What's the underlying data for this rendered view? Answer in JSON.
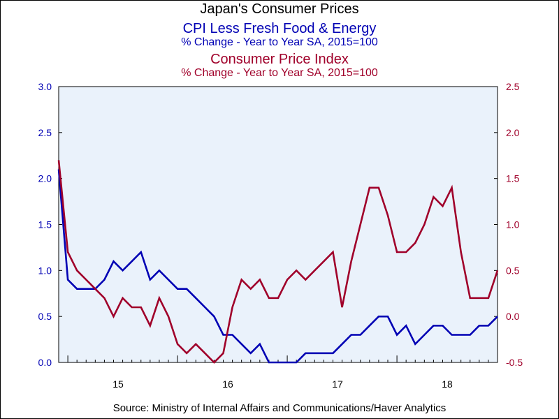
{
  "title": "Japan's Consumer Prices",
  "series1_title": "CPI Less Fresh Food & Energy",
  "series1_subtitle": "% Change - Year to Year     SA, 2015=100",
  "series2_title": "Consumer Price Index",
  "series2_subtitle": "% Change - Year to Year     SA, 2015=100",
  "source": "Source:  Ministry of Internal Affairs and Communications/Haver Analytics",
  "colors": {
    "series1": "#0000b4",
    "series2": "#a0002a",
    "plot_bg": "#eaf2fb",
    "left_axis": "#0000b4",
    "right_axis": "#a0002a"
  },
  "chart_data": {
    "type": "line",
    "x_unit": "month",
    "x_start": "2014-12",
    "x_tick_labels": [
      "15",
      "16",
      "17",
      "18"
    ],
    "left_axis": {
      "ylim": [
        0.0,
        3.0
      ],
      "ticks": [
        "0.0",
        "0.5",
        "1.0",
        "1.5",
        "2.0",
        "2.5",
        "3.0"
      ]
    },
    "right_axis": {
      "ylim": [
        -0.5,
        2.5
      ],
      "ticks": [
        "-0.5",
        "0.0",
        "0.5",
        "1.0",
        "1.5",
        "2.0",
        "2.5"
      ]
    },
    "grid": false,
    "series": [
      {
        "name": "CPI Less Fresh Food & Energy",
        "axis": "left",
        "values": [
          2.1,
          0.9,
          0.8,
          0.8,
          0.8,
          0.9,
          1.1,
          1.0,
          1.1,
          1.2,
          0.9,
          1.0,
          0.9,
          0.8,
          0.8,
          0.7,
          0.6,
          0.5,
          0.3,
          0.3,
          0.2,
          0.1,
          0.2,
          0.0,
          0.0,
          0.0,
          0.0,
          0.1,
          0.1,
          0.1,
          0.1,
          0.2,
          0.3,
          0.3,
          0.4,
          0.5,
          0.5,
          0.3,
          0.4,
          0.2,
          0.3,
          0.4,
          0.4,
          0.3,
          0.3,
          0.3,
          0.4,
          0.4,
          0.5
        ]
      },
      {
        "name": "Consumer Price Index",
        "axis": "right",
        "values": [
          1.7,
          0.7,
          0.5,
          0.4,
          0.3,
          0.2,
          0.0,
          0.2,
          0.1,
          0.1,
          -0.1,
          0.2,
          0.0,
          -0.3,
          -0.4,
          -0.3,
          -0.4,
          -0.5,
          -0.4,
          0.1,
          0.4,
          0.3,
          0.4,
          0.2,
          0.2,
          0.4,
          0.5,
          0.4,
          0.5,
          0.6,
          0.7,
          0.1,
          0.6,
          1.0,
          1.4,
          1.4,
          1.1,
          0.7,
          0.7,
          0.8,
          1.0,
          1.3,
          1.2,
          1.4,
          0.7,
          0.2,
          0.2,
          0.2,
          0.5
        ]
      }
    ]
  }
}
